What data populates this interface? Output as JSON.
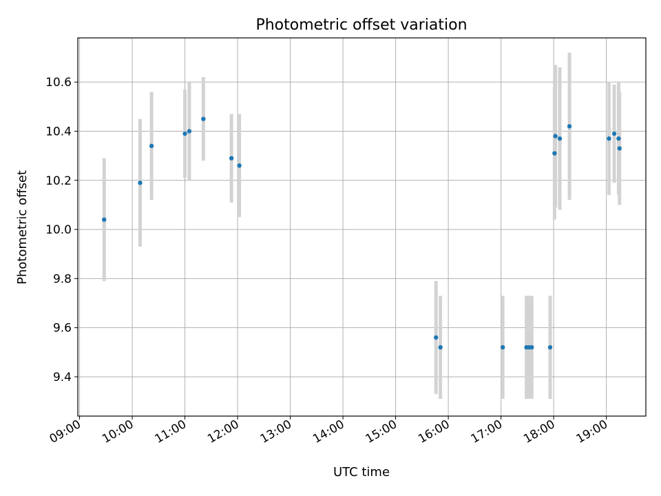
{
  "chart_data": {
    "type": "scatter",
    "title": "Photometric offset variation",
    "xlabel": "UTC time",
    "ylabel": "Photometric offset",
    "xlim": [
      "08:58",
      "19:45"
    ],
    "ylim": [
      9.24,
      10.78
    ],
    "x_ticks": [
      "09:00",
      "10:00",
      "11:00",
      "12:00",
      "13:00",
      "14:00",
      "15:00",
      "16:00",
      "17:00",
      "18:00",
      "19:00"
    ],
    "y_ticks": [
      9.4,
      9.6,
      9.8,
      10.0,
      10.2,
      10.4,
      10.6
    ],
    "y_tick_labels": [
      "9.4",
      "9.6",
      "9.8",
      "10.0",
      "10.2",
      "10.4",
      "10.6"
    ],
    "grid": true,
    "point_color": "#1f77b4",
    "errorbar_color": "#d3d3d3",
    "points": [
      {
        "t": "09:28",
        "y": 10.04,
        "err": 0.25
      },
      {
        "t": "10:09",
        "y": 10.19,
        "err": 0.26
      },
      {
        "t": "10:22",
        "y": 10.34,
        "err": 0.22
      },
      {
        "t": "11:00",
        "y": 10.39,
        "err": 0.18
      },
      {
        "t": "11:05",
        "y": 10.4,
        "err": 0.2
      },
      {
        "t": "11:21",
        "y": 10.45,
        "err": 0.17
      },
      {
        "t": "11:53",
        "y": 10.29,
        "err": 0.18
      },
      {
        "t": "12:02",
        "y": 10.26,
        "err": 0.21
      },
      {
        "t": "15:46",
        "y": 9.56,
        "err": 0.23
      },
      {
        "t": "15:51",
        "y": 9.52,
        "err": 0.21
      },
      {
        "t": "17:02",
        "y": 9.52,
        "err": 0.21
      },
      {
        "t": "17:29",
        "y": 9.52,
        "err": 0.21
      },
      {
        "t": "17:32",
        "y": 9.52,
        "err": 0.21
      },
      {
        "t": "17:35",
        "y": 9.52,
        "err": 0.21
      },
      {
        "t": "17:56",
        "y": 9.52,
        "err": 0.21
      },
      {
        "t": "18:01",
        "y": 10.31,
        "err": 0.27
      },
      {
        "t": "18:02",
        "y": 10.38,
        "err": 0.29
      },
      {
        "t": "18:07",
        "y": 10.37,
        "err": 0.29
      },
      {
        "t": "18:18",
        "y": 10.42,
        "err": 0.3
      },
      {
        "t": "19:03",
        "y": 10.37,
        "err": 0.23
      },
      {
        "t": "19:09",
        "y": 10.39,
        "err": 0.2
      },
      {
        "t": "19:14",
        "y": 10.37,
        "err": 0.23
      },
      {
        "t": "19:15",
        "y": 10.33,
        "err": 0.23
      }
    ]
  }
}
